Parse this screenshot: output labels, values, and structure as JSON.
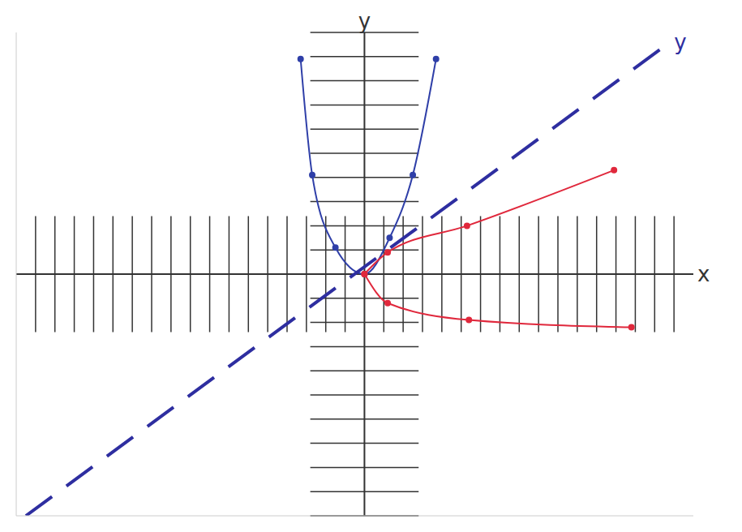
{
  "chart_data": {
    "type": "line",
    "x_label": "x",
    "y_label": "y",
    "tick_labels": false,
    "grid": false,
    "xlim": [
      -18,
      17
    ],
    "xticks": [
      -17,
      -16,
      -15,
      -14,
      -13,
      -12,
      -11,
      -10,
      -9,
      -8,
      -7,
      -6,
      -5,
      -4,
      -3,
      -2,
      -1,
      0,
      1,
      2,
      3,
      4,
      5,
      6,
      7,
      8,
      9,
      10,
      11,
      12,
      13,
      14,
      15,
      16
    ],
    "ylim": [
      -10,
      10
    ],
    "yticks": [
      -10,
      -9,
      -8,
      -7,
      -6,
      -5,
      -4,
      -3,
      -2,
      -1,
      0,
      1,
      2,
      3,
      4,
      5,
      6,
      7,
      8,
      9,
      10
    ],
    "series": [
      {
        "color": "#2f3fa8",
        "line_style": "solid",
        "marker": "circle",
        "x": [
          -3.3,
          -2.7,
          -1.5,
          0,
          1.3,
          2.5,
          3.7
        ],
        "values": [
          8.9,
          4.1,
          1.1,
          0,
          1.5,
          4.1,
          8.9
        ]
      },
      {
        "color": "#2e2ea0",
        "line_style": "dashed",
        "marker": "none",
        "label": "y",
        "x": [
          -17.5,
          15.8
        ],
        "values": [
          -10,
          9.6
        ]
      },
      {
        "color": "#e0283c",
        "line_style": "solid",
        "marker": "circle",
        "x": [
          0,
          1.2,
          5.3,
          12.9
        ],
        "values": [
          0,
          0.9,
          2.0,
          4.3
        ]
      },
      {
        "color": "#e0283c",
        "line_style": "solid",
        "marker": "circle",
        "x": [
          0,
          1.2,
          5.4,
          13.8
        ],
        "values": [
          0,
          -1.2,
          -1.9,
          -2.2
        ]
      }
    ]
  }
}
